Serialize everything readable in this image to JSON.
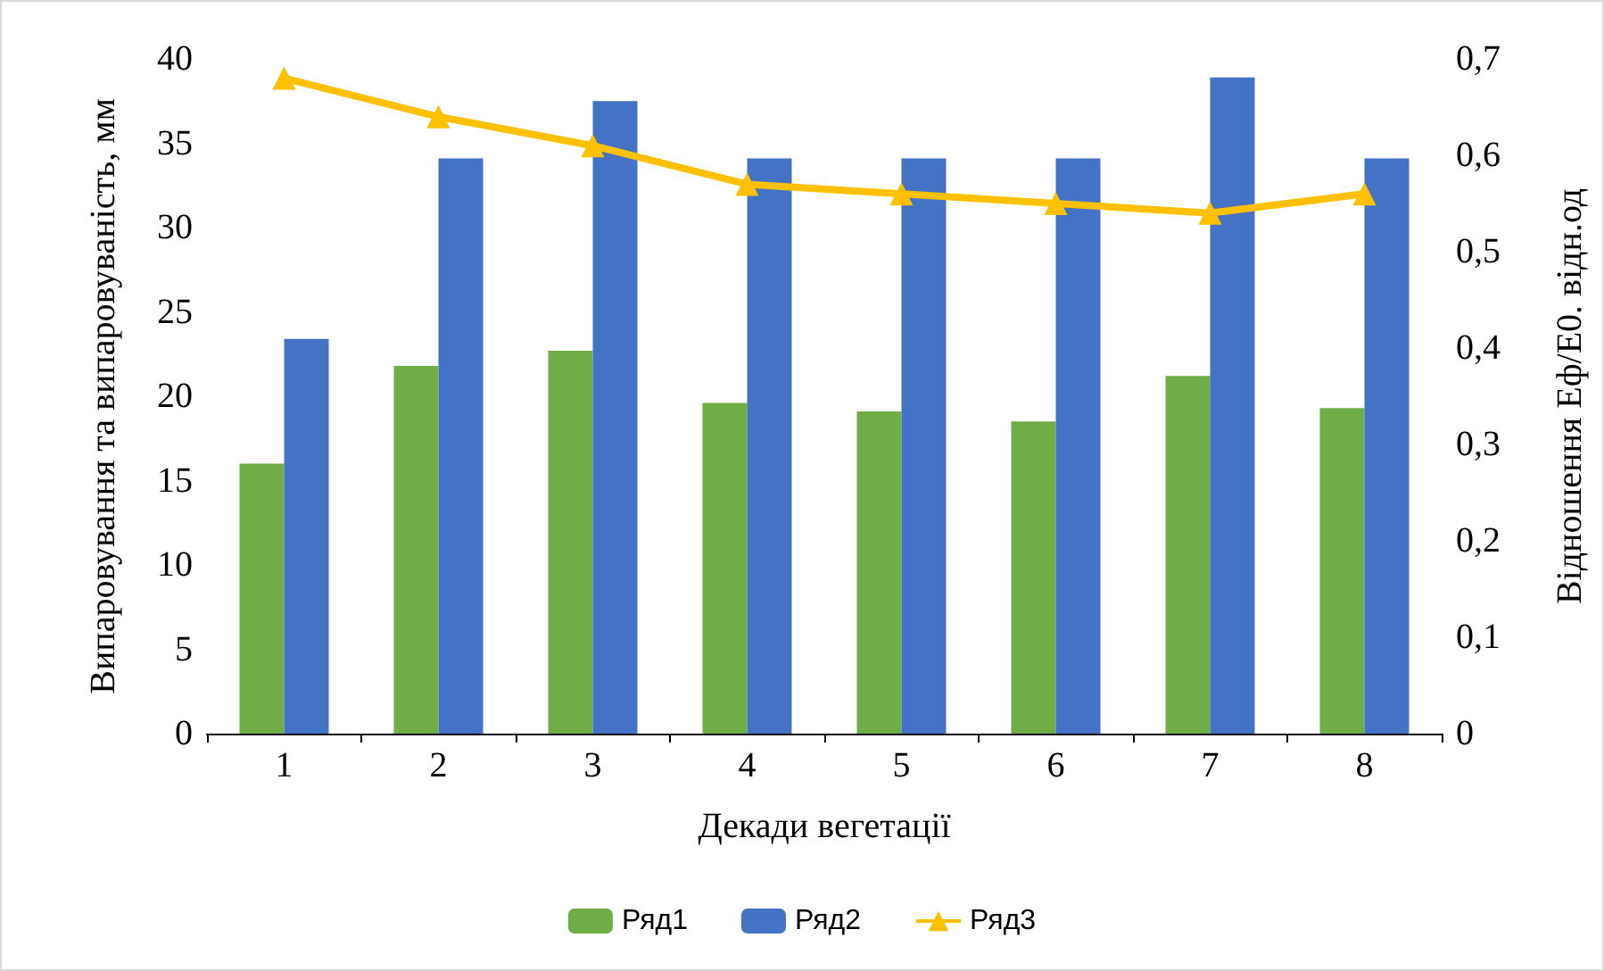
{
  "chart_data": {
    "type": "bar",
    "xlabel": "Декади вегетації",
    "ylabel": "Випаровування та випаровуваність, мм",
    "y2label": "Відношення Еф/Е0. відн.од",
    "categories": [
      "1",
      "2",
      "3",
      "4",
      "5",
      "6",
      "7",
      "8"
    ],
    "series": [
      {
        "name": "Ряд1",
        "color": "#70ad47",
        "values": [
          16.0,
          21.8,
          22.7,
          19.6,
          19.1,
          18.5,
          21.2,
          19.3
        ]
      },
      {
        "name": "Ряд2",
        "color": "#4472c4",
        "values": [
          23.4,
          34.1,
          37.5,
          34.1,
          34.1,
          34.1,
          38.9,
          34.1
        ]
      },
      {
        "name": "Ряд3",
        "type": "line",
        "axis": "y2",
        "color": "#ffc000",
        "marker": "triangle",
        "values": [
          0.68,
          0.64,
          0.61,
          0.57,
          0.56,
          0.55,
          0.54,
          0.56
        ]
      }
    ],
    "ylim": [
      0,
      40
    ],
    "yticks": [
      0,
      5,
      10,
      15,
      20,
      25,
      30,
      35,
      40
    ],
    "y2lim": [
      0,
      0.7
    ],
    "y2ticks": [
      {
        "value": 0,
        "label": "0"
      },
      {
        "value": 0.1,
        "label": "0,1"
      },
      {
        "value": 0.2,
        "label": "0,2"
      },
      {
        "value": 0.3,
        "label": "0,3"
      },
      {
        "value": 0.4,
        "label": "0,4"
      },
      {
        "value": 0.5,
        "label": "0,5"
      },
      {
        "value": 0.6,
        "label": "0,6"
      },
      {
        "value": 0.7,
        "label": "0,7"
      }
    ],
    "grid": false,
    "legend": "bottom"
  }
}
